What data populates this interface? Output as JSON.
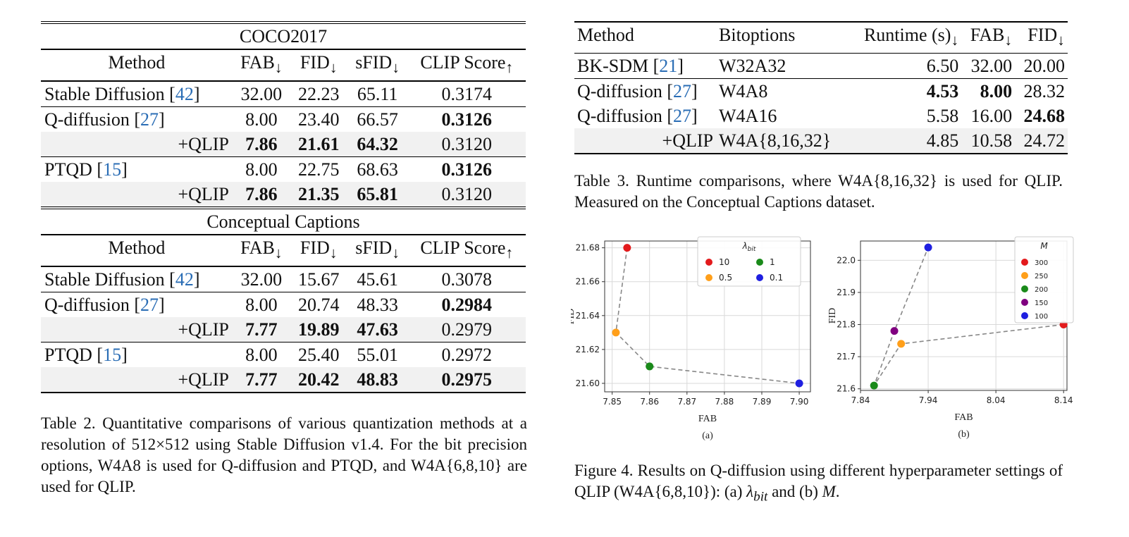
{
  "table2": {
    "sections": [
      {
        "title": "COCO2017",
        "headers": [
          "Method",
          "FAB",
          "FID",
          "sFID",
          "CLIP Score"
        ],
        "header_arrows": [
          "",
          "↓",
          "↓",
          "↓",
          "↑"
        ],
        "rows": [
          {
            "method": "Stable Diffusion [",
            "ref": "42",
            "close": "]",
            "values": [
              "32.00",
              "22.23",
              "65.11",
              "0.3174"
            ],
            "bold": [
              false,
              false,
              false,
              false
            ],
            "indent": false,
            "shade": false
          },
          {
            "method": "Q-diffusion [",
            "ref": "27",
            "close": "]",
            "values": [
              "8.00",
              "23.40",
              "66.57",
              "0.3126"
            ],
            "bold": [
              false,
              false,
              false,
              true
            ],
            "indent": false,
            "shade": false
          },
          {
            "method": "+QLIP",
            "ref": "",
            "close": "",
            "values": [
              "7.86",
              "21.61",
              "64.32",
              "0.3120"
            ],
            "bold": [
              true,
              true,
              true,
              false
            ],
            "indent": true,
            "shade": true
          },
          {
            "method": "PTQD [",
            "ref": "15",
            "close": "]",
            "values": [
              "8.00",
              "22.75",
              "68.63",
              "0.3126"
            ],
            "bold": [
              false,
              false,
              false,
              true
            ],
            "indent": false,
            "shade": false
          },
          {
            "method": "+QLIP",
            "ref": "",
            "close": "",
            "values": [
              "7.86",
              "21.35",
              "65.81",
              "0.3120"
            ],
            "bold": [
              true,
              true,
              true,
              false
            ],
            "indent": true,
            "shade": true
          }
        ]
      },
      {
        "title": "Conceptual Captions",
        "headers": [
          "Method",
          "FAB",
          "FID",
          "sFID",
          "CLIP Score"
        ],
        "header_arrows": [
          "",
          "↓",
          "↓",
          "↓",
          "↑"
        ],
        "rows": [
          {
            "method": "Stable Diffusion [",
            "ref": "42",
            "close": "]",
            "values": [
              "32.00",
              "15.67",
              "45.61",
              "0.3078"
            ],
            "bold": [
              false,
              false,
              false,
              false
            ],
            "indent": false,
            "shade": false
          },
          {
            "method": "Q-diffusion [",
            "ref": "27",
            "close": "]",
            "values": [
              "8.00",
              "20.74",
              "48.33",
              "0.2984"
            ],
            "bold": [
              false,
              false,
              false,
              true
            ],
            "indent": false,
            "shade": false
          },
          {
            "method": "+QLIP",
            "ref": "",
            "close": "",
            "values": [
              "7.77",
              "19.89",
              "47.63",
              "0.2979"
            ],
            "bold": [
              true,
              true,
              true,
              false
            ],
            "indent": true,
            "shade": true
          },
          {
            "method": "PTQD [",
            "ref": "15",
            "close": "]",
            "values": [
              "8.00",
              "25.40",
              "55.01",
              "0.2972"
            ],
            "bold": [
              false,
              false,
              false,
              false
            ],
            "indent": false,
            "shade": false
          },
          {
            "method": "+QLIP",
            "ref": "",
            "close": "",
            "values": [
              "7.77",
              "20.42",
              "48.83",
              "0.2975"
            ],
            "bold": [
              true,
              true,
              true,
              true
            ],
            "indent": true,
            "shade": true
          }
        ]
      }
    ],
    "caption": "Table 2. Quantitative comparisons of various quantization methods at a resolution of 512×512 using Stable Diffusion v1.4. For the bit precision options, W4A8 is used for Q-diffusion and PTQD, and W4A{6,8,10} are used for QLIP."
  },
  "table3": {
    "headers": [
      "Method",
      "Bitoptions",
      "Runtime (s)",
      "FAB",
      "FID"
    ],
    "header_arrows": [
      "",
      "",
      "↓",
      "↓",
      "↓"
    ],
    "rows": [
      {
        "method": "BK-SDM [",
        "ref": "21",
        "close": "]",
        "bits": "W32A32",
        "values": [
          "6.50",
          "32.00",
          "20.00"
        ],
        "bold": [
          false,
          false,
          false
        ],
        "indent": false,
        "shade": false
      },
      {
        "method": "Q-diffusion [",
        "ref": "27",
        "close": "]",
        "bits": "W4A8",
        "values": [
          "4.53",
          "8.00",
          "28.32"
        ],
        "bold": [
          true,
          true,
          false
        ],
        "indent": false,
        "shade": false
      },
      {
        "method": "Q-diffusion [",
        "ref": "27",
        "close": "]",
        "bits": "W4A16",
        "values": [
          "5.58",
          "16.00",
          "24.68"
        ],
        "bold": [
          false,
          false,
          true
        ],
        "indent": false,
        "shade": false
      },
      {
        "method": "+QLIP",
        "ref": "",
        "close": "",
        "bits": "W4A{8,16,32}",
        "values": [
          "4.85",
          "10.58",
          "24.72"
        ],
        "bold": [
          false,
          false,
          false
        ],
        "indent": true,
        "shade": true
      }
    ],
    "caption": "Table 3. Runtime comparisons, where W4A{8,16,32} is used for QLIP. Measured on the Conceptual Captions dataset."
  },
  "figure4": {
    "caption_parts": [
      "Figure 4. Results on Q-diffusion using different hyperparameter settings of QLIP (W4A{6,8,10}): (a) ",
      "λ",
      "bit",
      " and (b) ",
      "M",
      "."
    ],
    "grid_color": "#d9d9d9",
    "line_color": "#888888",
    "chart_data": [
      {
        "type": "scatter",
        "sublabel": "(a)",
        "xlabel": "FAB",
        "ylabel": "FID",
        "xlim": [
          7.848,
          7.903
        ],
        "ylim": [
          21.595,
          21.684
        ],
        "xticks": [
          "7.85",
          "7.86",
          "7.87",
          "7.88",
          "7.89",
          "7.90"
        ],
        "xtick_values": [
          7.85,
          7.86,
          7.87,
          7.88,
          7.89,
          7.9
        ],
        "yticks": [
          "21.60",
          "21.62",
          "21.64",
          "21.66",
          "21.68"
        ],
        "ytick_values": [
          21.6,
          21.62,
          21.64,
          21.66,
          21.68
        ],
        "legend_title_main": "λ",
        "legend_title_sub": "bit",
        "legend_placement": "top-right",
        "legend_columns": 2,
        "connected": true,
        "points": [
          {
            "label": "10",
            "x": 7.854,
            "y": 21.68,
            "color": "#e31a1c"
          },
          {
            "label": "0.5",
            "x": 7.851,
            "y": 21.63,
            "color": "#ff9f1a"
          },
          {
            "label": "1",
            "x": 7.86,
            "y": 21.61,
            "color": "#1a8a1a"
          },
          {
            "label": "0.1",
            "x": 7.9,
            "y": 21.6,
            "color": "#1f1fe0"
          }
        ],
        "legend_order": [
          "10",
          "1",
          "0.5",
          "0.1"
        ]
      },
      {
        "type": "scatter",
        "sublabel": "(b)",
        "xlabel": "FAB",
        "ylabel": "FID",
        "xlim": [
          7.84,
          8.145
        ],
        "ylim": [
          21.595,
          22.06
        ],
        "xticks": [
          "7.84",
          "7.94",
          "8.04",
          "8.14"
        ],
        "xtick_values": [
          7.84,
          7.94,
          8.04,
          8.14
        ],
        "yticks": [
          "21.6",
          "21.7",
          "21.8",
          "21.9",
          "22.0"
        ],
        "ytick_values": [
          21.6,
          21.7,
          21.8,
          21.9,
          22.0
        ],
        "legend_title_main": "M",
        "legend_title_sub": "",
        "legend_placement": "top-right",
        "legend_columns": 1,
        "connected": true,
        "points": [
          {
            "label": "300",
            "x": 8.14,
            "y": 21.8,
            "color": "#e31a1c"
          },
          {
            "label": "250",
            "x": 7.9,
            "y": 21.74,
            "color": "#ff9f1a"
          },
          {
            "label": "200",
            "x": 7.86,
            "y": 21.61,
            "color": "#1a8a1a"
          },
          {
            "label": "150",
            "x": 7.89,
            "y": 21.78,
            "color": "#800080"
          },
          {
            "label": "100",
            "x": 7.94,
            "y": 22.04,
            "color": "#1f1fe0"
          }
        ],
        "legend_order": [
          "300",
          "250",
          "200",
          "150",
          "100"
        ]
      }
    ]
  }
}
